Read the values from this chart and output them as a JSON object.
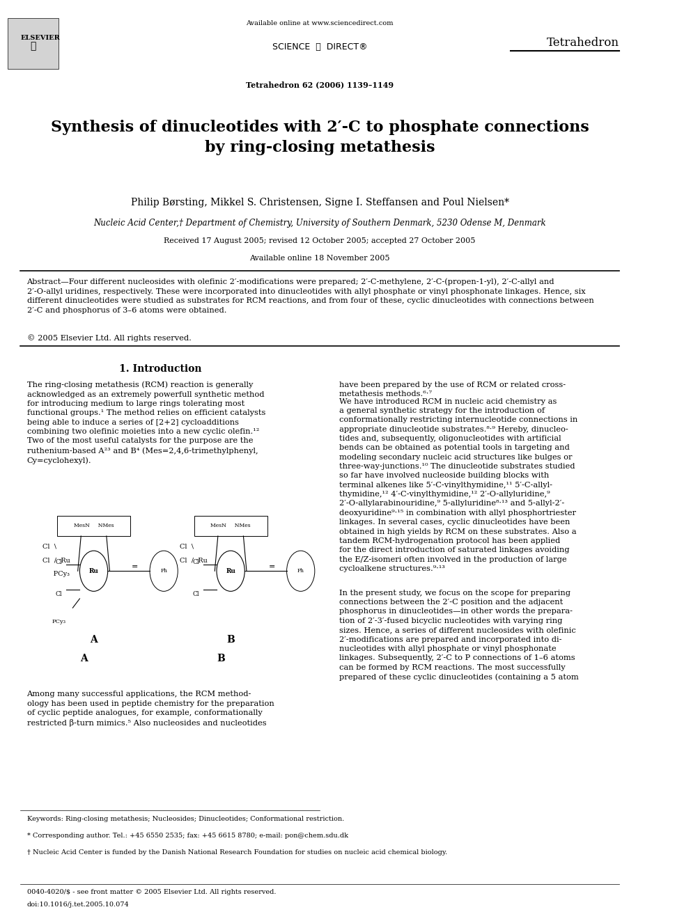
{
  "page_width": 9.92,
  "page_height": 13.23,
  "bg_color": "#ffffff",
  "header": {
    "available_online": "Available online at www.sciencedirect.com",
    "sciencedirect_text": "SCIENCE ⓓ DIRECT®",
    "journal_ref": "Tetrahedron 62 (2006) 1139–1149",
    "journal_name": "Tetrahedron"
  },
  "title": "Synthesis of dinucleotides with 2′-C to phosphate connections\nby ring-closing metathesis",
  "authors": "Philip Børsting, Mikkel S. Christensen, Signe I. Steffansen and Poul Nielsen*",
  "affiliation": "Nucleic Acid Center,† Department of Chemistry, University of Southern Denmark, 5230 Odense M, Denmark",
  "received": "Received 17 August 2005; revised 12 October 2005; accepted 27 October 2005",
  "available_online2": "Available online 18 November 2005",
  "abstract_label": "Abstract",
  "abstract_text": "—Four different nucleosides with olefinic 2′-modifications were prepared; 2′-C-methylene, 2′-C-(propen-1-yl), 2′-C-allyl and 2′-O-allyl uridines, respectively. These were incorporated into dinucleotides with allyl phosphate or vinyl phosphonate linkages. Hence, six different dinucleotides were studied as substrates for RCM reactions, and from four of these, cyclic dinucleotides with connections between 2′-C and phosphorus of 3–6 atoms were obtained.",
  "copyright": "© 2005 Elsevier Ltd. All rights reserved.",
  "section1_title": "1. Introduction",
  "intro_col1_p1": "The ring-closing metathesis (RCM) reaction is generally acknowledged as an extremely powerfull synthetic method for introducing medium to large rings tolerating most functional groups.¹ The method relies on efficient catalysts being able to induce a series of [2+2] cycloadditions combining two olefinic moieties into a new cyclic olefin.¹² Two of the most useful catalysts for the purpose are the ruthenium-based A²³ and B⁴ (Mes=2,4,6-trimethylphenyl, Cy=cyclohexyl).",
  "intro_col2_p1": "have been prepared by the use of RCM or related cross-metathesis methods.⁶·⁷",
  "intro_col2_p2": "We have introduced RCM in nucleic acid chemistry as a general synthetic strategy for the introduction of conformationally restricting internucleotide connections in appropriate dinucleotide substrates.⁸·⁹ Hereby, dinucleotides and, subsequently, oligonucleotides with artificial bends can be obtained as potential tools in targeting and modeling secondary nucleic acid structures like bulges or three-way-junctions.¹⁰ The dinucleotide substrates studied so far have involved nucleoside building blocks with terminal alkenes like 5′-C-vinylthymidine,¹¹ 5′-C-allyl-thymidine,¹² 4′-C-vinylthymidine,¹² 2′-O-allyluridine,⁹ 2′-O-allylarabinouridine,⁹ 5-allyluridine⁸·¹³ and 5-allyl-2′-deoxyuridine⁹·¹⁵ in combination with allyl phosphortriester linkages. In several cases, cyclic dinucleotides have been obtained in high yields by RCM on these substrates. Also a tandem RCM-hydrogenation protocol has been applied for the direct introduction of saturated linkages avoiding the E/Z-isomeri often involved in the production of large cycloalkene structures.⁹·¹³",
  "intro_col1_p2": "Among many successful applications, the RCM methodology has been used in peptide chemistry for the preparation of cyclic peptide analogues, for example, conformationally restricted β-turn mimics.⁵ Also nucleosides and nucleotides",
  "intro_col2_p3": "In the present study, we focus on the scope for preparing connections between the 2′-C position and the adjacent phosphorus in dinucleotides—in other words the preparation of 2′-3′-fused bicyclic nucleotides with varying ring sizes. Hence, a series of different nucleosides with olefinic 2′-modifications are prepared and incorporated into dinucleotides with allyl phosphate or vinyl phosphonate linkages. Subsequently, 2′-C to P connections of 1–6 atoms can be formed by RCM reactions. The most successfully prepared of these cyclic dinucleotides (containing a 5 atom",
  "footnote_keywords": "Keywords: Ring-closing metathesis; Nucleosides; Dinucleotides; Conformational restriction.",
  "footnote_corresponding": "* Corresponding author. Tel.: +45 6550 2535; fax: +45 6615 8780; e-mail: pon@chem.sdu.dk",
  "footnote_nucleic": "† Nucleic Acid Center is funded by the Danish National Research Foundation for studies on nucleic acid chemical biology.",
  "footer_issn": "0040-4020/$ - see front matter © 2005 Elsevier Ltd. All rights reserved.",
  "footer_doi": "doi:10.1016/j.tet.2005.10.074",
  "catalyst_label_A": "A",
  "catalyst_label_B": "B"
}
